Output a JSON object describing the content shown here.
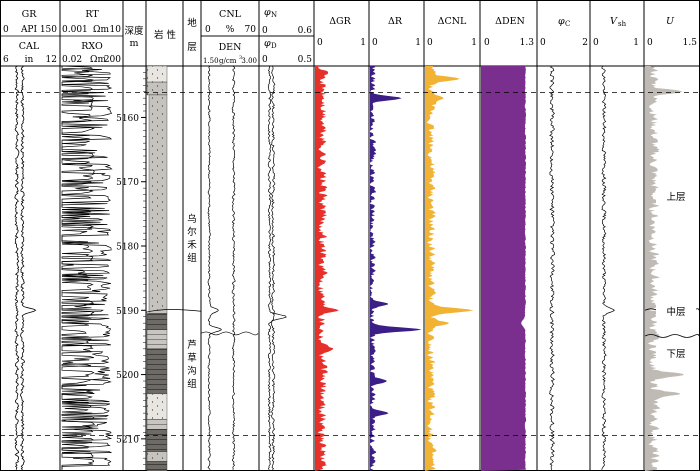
{
  "chart_data": {
    "type": "well_log",
    "depth_axis": {
      "label": "深度",
      "unit": "m",
      "range": [
        5152,
        5215
      ],
      "ticks": [
        5160,
        5170,
        5180,
        5190,
        5200,
        5210
      ],
      "tick_labels": [
        "5160",
        "5170",
        "5180",
        "5190",
        "5200",
        "5210"
      ]
    },
    "dashed_boundaries": [
      5156.1,
      5209.5
    ],
    "lithology_header": "岩 性",
    "strata": {
      "header": [
        "地",
        "层"
      ],
      "units": [
        {
          "name": "乌尔禾组",
          "label_chars": [
            "乌",
            "尔",
            "禾",
            "组"
          ],
          "top": 5152,
          "bottom": 5190
        },
        {
          "name": "芦草沟组",
          "label_chars": [
            "芦",
            "草",
            "沟",
            "组"
          ],
          "top": 5190,
          "bottom": 5215
        }
      ]
    },
    "tracks": [
      {
        "name": "GR",
        "unit": "API",
        "range": [
          0,
          150
        ],
        "range_labels": [
          "0",
          "150"
        ],
        "style": "line"
      },
      {
        "name": "CAL",
        "unit": "in",
        "range": [
          6,
          12
        ],
        "range_labels": [
          "6",
          "12"
        ],
        "style": "line"
      },
      {
        "name": "RT",
        "unit": "Ω·m",
        "unit_display": "Ωm",
        "range": [
          0.001,
          10
        ],
        "range_labels": [
          "0.001",
          "10"
        ],
        "style": "line"
      },
      {
        "name": "RXO",
        "unit": "Ω·m",
        "unit_display": "Ωm",
        "range": [
          0.02,
          200
        ],
        "range_labels": [
          "0.02",
          "200"
        ],
        "style": "line"
      },
      {
        "name": "CNL",
        "unit": "%",
        "range": [
          0,
          70
        ],
        "range_labels": [
          "0",
          "70"
        ],
        "style": "line"
      },
      {
        "name": "DEN",
        "unit": "g/cm³",
        "range": [
          1.5,
          3.0
        ],
        "range_labels": [
          "1.50",
          "3.00"
        ],
        "unit_display": "g/cm",
        "superscript": "3",
        "style": "line"
      },
      {
        "name": "φN",
        "symbol": "φ",
        "subscript": "N",
        "range": [
          0,
          0.6
        ],
        "range_labels": [
          "0",
          "0.6"
        ],
        "style": "line"
      },
      {
        "name": "φD",
        "symbol": "φ",
        "subscript": "D",
        "range": [
          0,
          0.5
        ],
        "range_labels": [
          "0",
          "0.5"
        ],
        "style": "line"
      },
      {
        "name": "ΔGR",
        "range": [
          0,
          1
        ],
        "range_labels": [
          "0",
          "1"
        ],
        "style": "filled",
        "color": "#e8302a"
      },
      {
        "name": "ΔR",
        "range": [
          0,
          1
        ],
        "range_labels": [
          "0",
          "1"
        ],
        "style": "filled",
        "color": "#3b1f86"
      },
      {
        "name": "ΔCNL",
        "range": [
          0,
          1
        ],
        "range_labels": [
          "0",
          "1"
        ],
        "style": "filled",
        "color": "#f2b233"
      },
      {
        "name": "ΔDEN",
        "range": [
          0,
          1.3
        ],
        "range_labels": [
          "0",
          "1.3"
        ],
        "style": "filled",
        "color": "#7a2f8e"
      },
      {
        "name": "φC",
        "symbol": "φ",
        "subscript": "C",
        "range": [
          0,
          2
        ],
        "range_labels": [
          "0",
          "2"
        ],
        "style": "line"
      },
      {
        "name": "Vsh",
        "symbol": "V",
        "subscript": "sh",
        "range": [
          0,
          1
        ],
        "range_labels": [
          "0",
          "1"
        ],
        "style": "line"
      },
      {
        "name": "U",
        "range": [
          0,
          1.5
        ],
        "range_labels": [
          "0",
          "1.5"
        ],
        "style": "filled",
        "color": "#c0bab4"
      }
    ],
    "zones": [
      {
        "label": "上层",
        "top": 5152,
        "bottom": 5190
      },
      {
        "label": "中层",
        "top": 5190,
        "bottom": 5194
      },
      {
        "label": "下层",
        "top": 5194,
        "bottom": 5215
      }
    ],
    "series": {
      "GR": {
        "base": 55,
        "amp": 6,
        "seed": 11,
        "spikes": [
          [
            5190,
            90
          ]
        ]
      },
      "CAL": {
        "base": 7.6,
        "amp": 0.25,
        "seed": 7
      },
      "RT": {
        "base": 0.3,
        "amp": 2.5,
        "seed": 21,
        "log": true
      },
      "RXO": {
        "base": 0.7,
        "amp": 3,
        "seed": 33,
        "log": true
      },
      "CNL": {
        "base": 8,
        "amp": 2,
        "seed": 41,
        "spikes": [
          [
            5190,
            20
          ],
          [
            5193,
            24
          ]
        ]
      },
      "DEN": {
        "base": 2.35,
        "amp": 0.05,
        "seed": 52
      },
      "PHIN": {
        "base": 0.1,
        "amp": 0.02,
        "seed": 63,
        "spikes": [
          [
            5191,
            0.3
          ]
        ]
      },
      "PHID": {
        "base": 0.12,
        "amp": 0.02,
        "seed": 64
      },
      "dGR": {
        "base": 0.15,
        "amp": 0.12,
        "seed": 71,
        "spikes": [
          [
            5153,
            0.25
          ],
          [
            5190,
            0.45
          ],
          [
            5196,
            0.35
          ]
        ]
      },
      "dR": {
        "base": 0.05,
        "amp": 0.08,
        "seed": 72,
        "spikes": [
          [
            5157,
            0.6
          ],
          [
            5189,
            0.35
          ],
          [
            5193,
            0.98
          ],
          [
            5201,
            0.32
          ],
          [
            5206,
            0.35
          ]
        ]
      },
      "dCNL": {
        "base": 0.12,
        "amp": 0.1,
        "seed": 73,
        "spikes": [
          [
            5154,
            0.65
          ],
          [
            5157,
            0.35
          ],
          [
            5190,
            0.9
          ],
          [
            5192,
            0.45
          ]
        ]
      },
      "dDEN": {
        "base": 1.05,
        "amp": 0.02,
        "seed": 74,
        "dips": [
          [
            5192,
            0.95
          ]
        ]
      },
      "PHIC": {
        "base": 0.55,
        "amp": 0.12,
        "seed": 75
      },
      "VSH": {
        "base": 0.25,
        "amp": 0.05,
        "seed": 76,
        "spikes": [
          [
            5190,
            0.45
          ]
        ]
      },
      "U": {
        "base": 0.25,
        "amp": 0.2,
        "seed": 77,
        "spikes": [
          [
            5156,
            1.05
          ],
          [
            5200,
            1.1
          ],
          [
            5203,
            1.0
          ]
        ]
      }
    }
  }
}
